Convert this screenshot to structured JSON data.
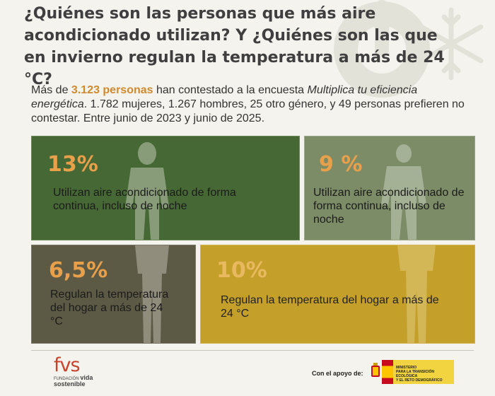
{
  "title": "¿Quiénes son las personas que más aire acondicionado utilizan? Y ¿Quiénes son las que en invierno regulan la temperatura a más de 24 °C?",
  "intro": {
    "prefix": "Más de ",
    "highlight": "3.123 personas",
    "mid": " han contestado a la encuesta ",
    "survey": "Multiplica tu eficiencia energética",
    "rest": ". 1.782 mujeres, 1.267 hombres, 25 otro género, y 49 personas prefieren no contestar. Entre junio de 2023 y junio de 2025."
  },
  "cards": [
    {
      "percent": "13%",
      "text": "Utilizan aire acondicionado de forma continua, incluso de noche"
    },
    {
      "percent": "9 %",
      "text": "Utilizan aire acondicionado de forma continua, incluso de noche"
    },
    {
      "percent": "6,5%",
      "text": "Regulan la temperatura del hogar a más de 24 °C"
    },
    {
      "percent": "10%",
      "text": "Regulan la temperatura del hogar a más de 24 °C"
    }
  ],
  "footer": {
    "logo_mark": "fvs",
    "logo_line1": "FUNDACIÓN",
    "logo_line1b": "vida",
    "logo_line2": "sostenible",
    "support_label": "Con el apoyo de:",
    "ministry_line1": "MINISTERIO",
    "ministry_line2": "PARA LA TRANSICIÓN ECOLÓGICA",
    "ministry_line3": "Y EL RETO DEMOGRÁFICO"
  },
  "colors": {
    "highlight": "#d08a2e",
    "card1": "#466834",
    "card2": "#7c8c67",
    "card3": "#5c5a45",
    "card4": "#c4a02a",
    "percent": "#e9a04a"
  }
}
